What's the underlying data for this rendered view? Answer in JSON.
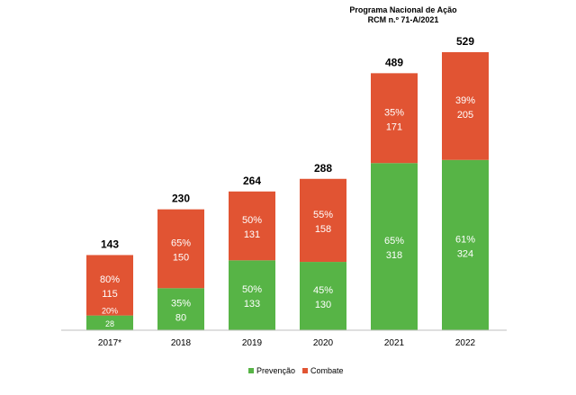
{
  "chart_data": {
    "type": "bar",
    "stacked": true,
    "title": "",
    "xlabel": "",
    "ylabel": "",
    "annotation": [
      "Programa Nacional de Ação",
      "RCM n.º 71-A/2021"
    ],
    "categories": [
      "2017*",
      "2018",
      "2019",
      "2020",
      "2021",
      "2022"
    ],
    "totals": [
      143,
      230,
      264,
      288,
      489,
      529
    ],
    "series": [
      {
        "name": "Prevenção",
        "color": "#57b446",
        "values": [
          28,
          80,
          133,
          130,
          318,
          324
        ],
        "percent_labels": [
          "20%",
          "35%",
          "50%",
          "45%",
          "65%",
          "61%"
        ]
      },
      {
        "name": "Combate",
        "color": "#e15433",
        "values": [
          115,
          150,
          131,
          158,
          171,
          205
        ],
        "percent_labels": [
          "80%",
          "65%",
          "50%",
          "55%",
          "35%",
          "39%"
        ]
      }
    ],
    "ylim": [
      0,
      529
    ],
    "grid": false,
    "legend_position": "bottom"
  }
}
